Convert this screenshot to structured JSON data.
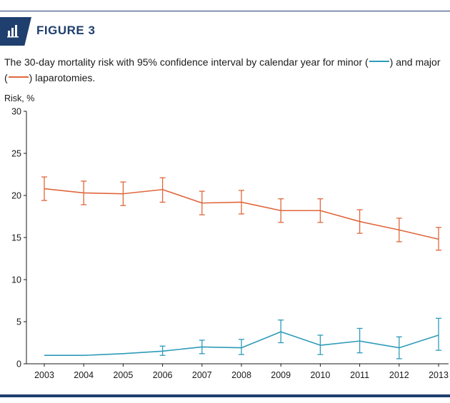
{
  "figure": {
    "label": "FIGURE 3",
    "icon": "bar-chart-icon",
    "colors": {
      "brand": "#1f3f6e"
    }
  },
  "caption": {
    "part1": "The 30-day mortality risk with 95% confidence interval by calendar year for minor (",
    "part2": ") and major (",
    "part3": ") laparotomies."
  },
  "chart_data": {
    "type": "line",
    "ylabel": "Risk, %",
    "xlabel": "",
    "ylim": [
      0,
      30
    ],
    "yticks": [
      0,
      5,
      10,
      15,
      20,
      25,
      30
    ],
    "categories": [
      "2003",
      "2004",
      "2005",
      "2006",
      "2007",
      "2008",
      "2009",
      "2010",
      "2011",
      "2012",
      "2013"
    ],
    "grid": false,
    "series": [
      {
        "key": "major",
        "color": "#e0673c",
        "values": [
          20.8,
          20.3,
          20.2,
          20.7,
          19.1,
          19.2,
          18.2,
          18.2,
          16.9,
          15.9,
          14.8
        ],
        "lower": [
          19.4,
          18.9,
          18.8,
          19.2,
          17.7,
          17.8,
          16.8,
          16.8,
          15.5,
          14.5,
          13.5
        ],
        "upper": [
          22.2,
          21.7,
          21.6,
          22.1,
          20.5,
          20.6,
          19.6,
          19.6,
          18.3,
          17.3,
          16.2
        ]
      },
      {
        "key": "minor",
        "color": "#2e9bb9",
        "values": [
          1.0,
          1.0,
          1.2,
          1.5,
          2.0,
          1.9,
          3.8,
          2.2,
          2.7,
          1.9,
          3.4
        ],
        "lower": [
          null,
          null,
          null,
          1.0,
          1.2,
          1.1,
          2.5,
          1.1,
          1.3,
          0.6,
          1.6
        ],
        "upper": [
          null,
          null,
          null,
          2.1,
          2.8,
          2.9,
          5.2,
          3.4,
          4.2,
          3.2,
          5.4
        ]
      }
    ]
  }
}
